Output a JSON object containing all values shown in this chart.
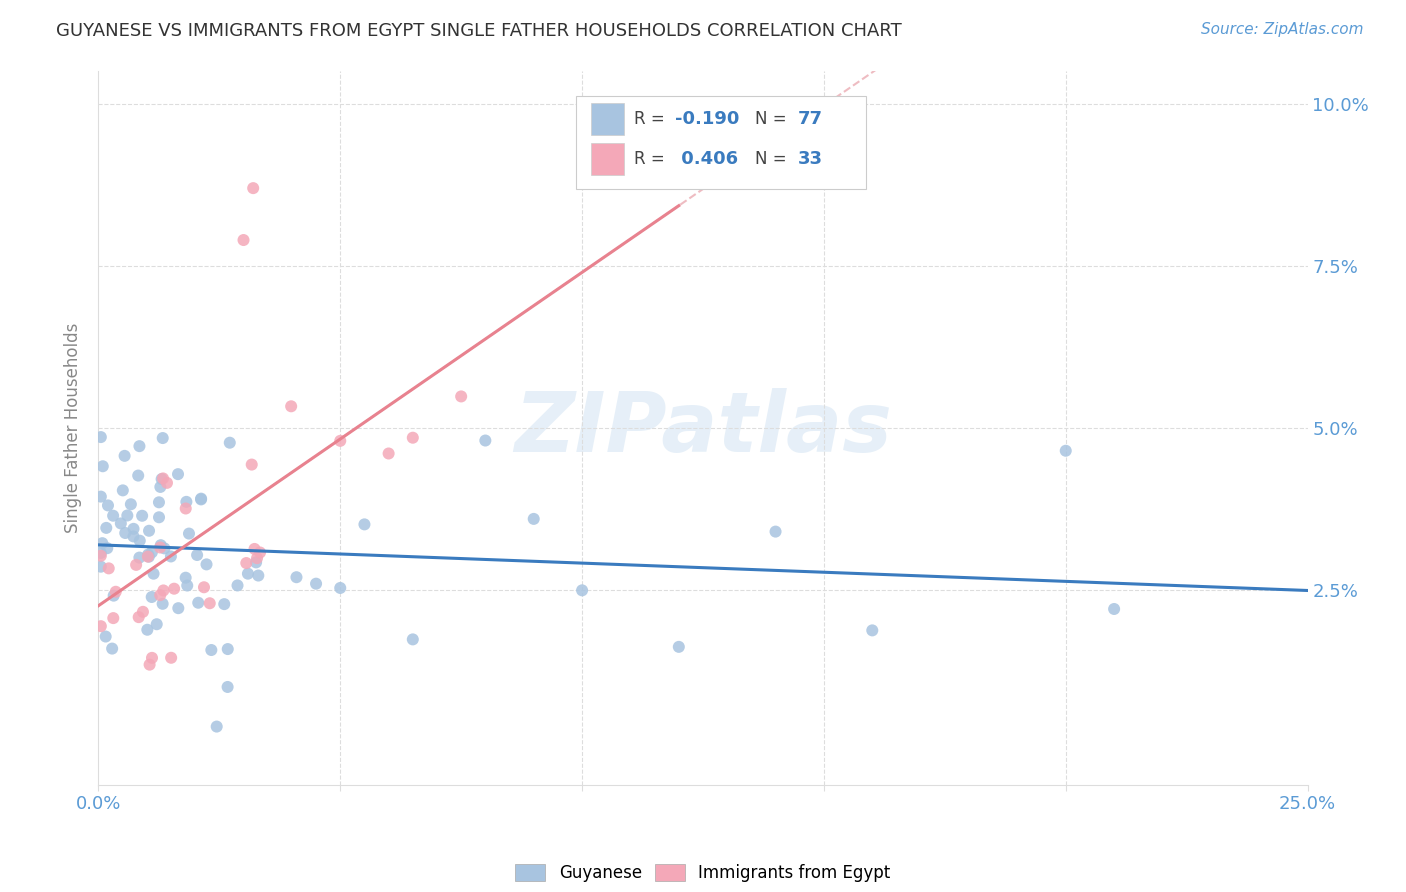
{
  "title": "GUYANESE VS IMMIGRANTS FROM EGYPT SINGLE FATHER HOUSEHOLDS CORRELATION CHART",
  "source": "Source: ZipAtlas.com",
  "ylabel": "Single Father Households",
  "legend_labels": [
    "Guyanese",
    "Immigrants from Egypt"
  ],
  "guyanese_color": "#a8c4e0",
  "egypt_color": "#f4a8b8",
  "guyanese_line_color": "#3a7bbf",
  "egypt_line_color": "#e8828f",
  "dashed_line_color": "#e8a0a8",
  "R_guyanese": -0.19,
  "N_guyanese": 77,
  "R_egypt": 0.406,
  "N_egypt": 33,
  "xlim": [
    0.0,
    0.25
  ],
  "ylim": [
    -0.005,
    0.105
  ],
  "ytick_vals": [
    0.025,
    0.05,
    0.075,
    0.1
  ],
  "ytick_labels": [
    "2.5%",
    "5.0%",
    "7.5%",
    "10.0%"
  ],
  "xtick_vals": [
    0.0,
    0.05,
    0.1,
    0.15,
    0.2,
    0.25
  ],
  "watermark": "ZIPatlas",
  "background_color": "#ffffff",
  "grid_color": "#dddddd",
  "stat_box_color": "#f8f8ff",
  "stat_border_color": "#cccccc",
  "title_color": "#333333",
  "source_color": "#5b9bd5",
  "tick_label_color": "#5b9bd5",
  "ylabel_color": "#888888"
}
